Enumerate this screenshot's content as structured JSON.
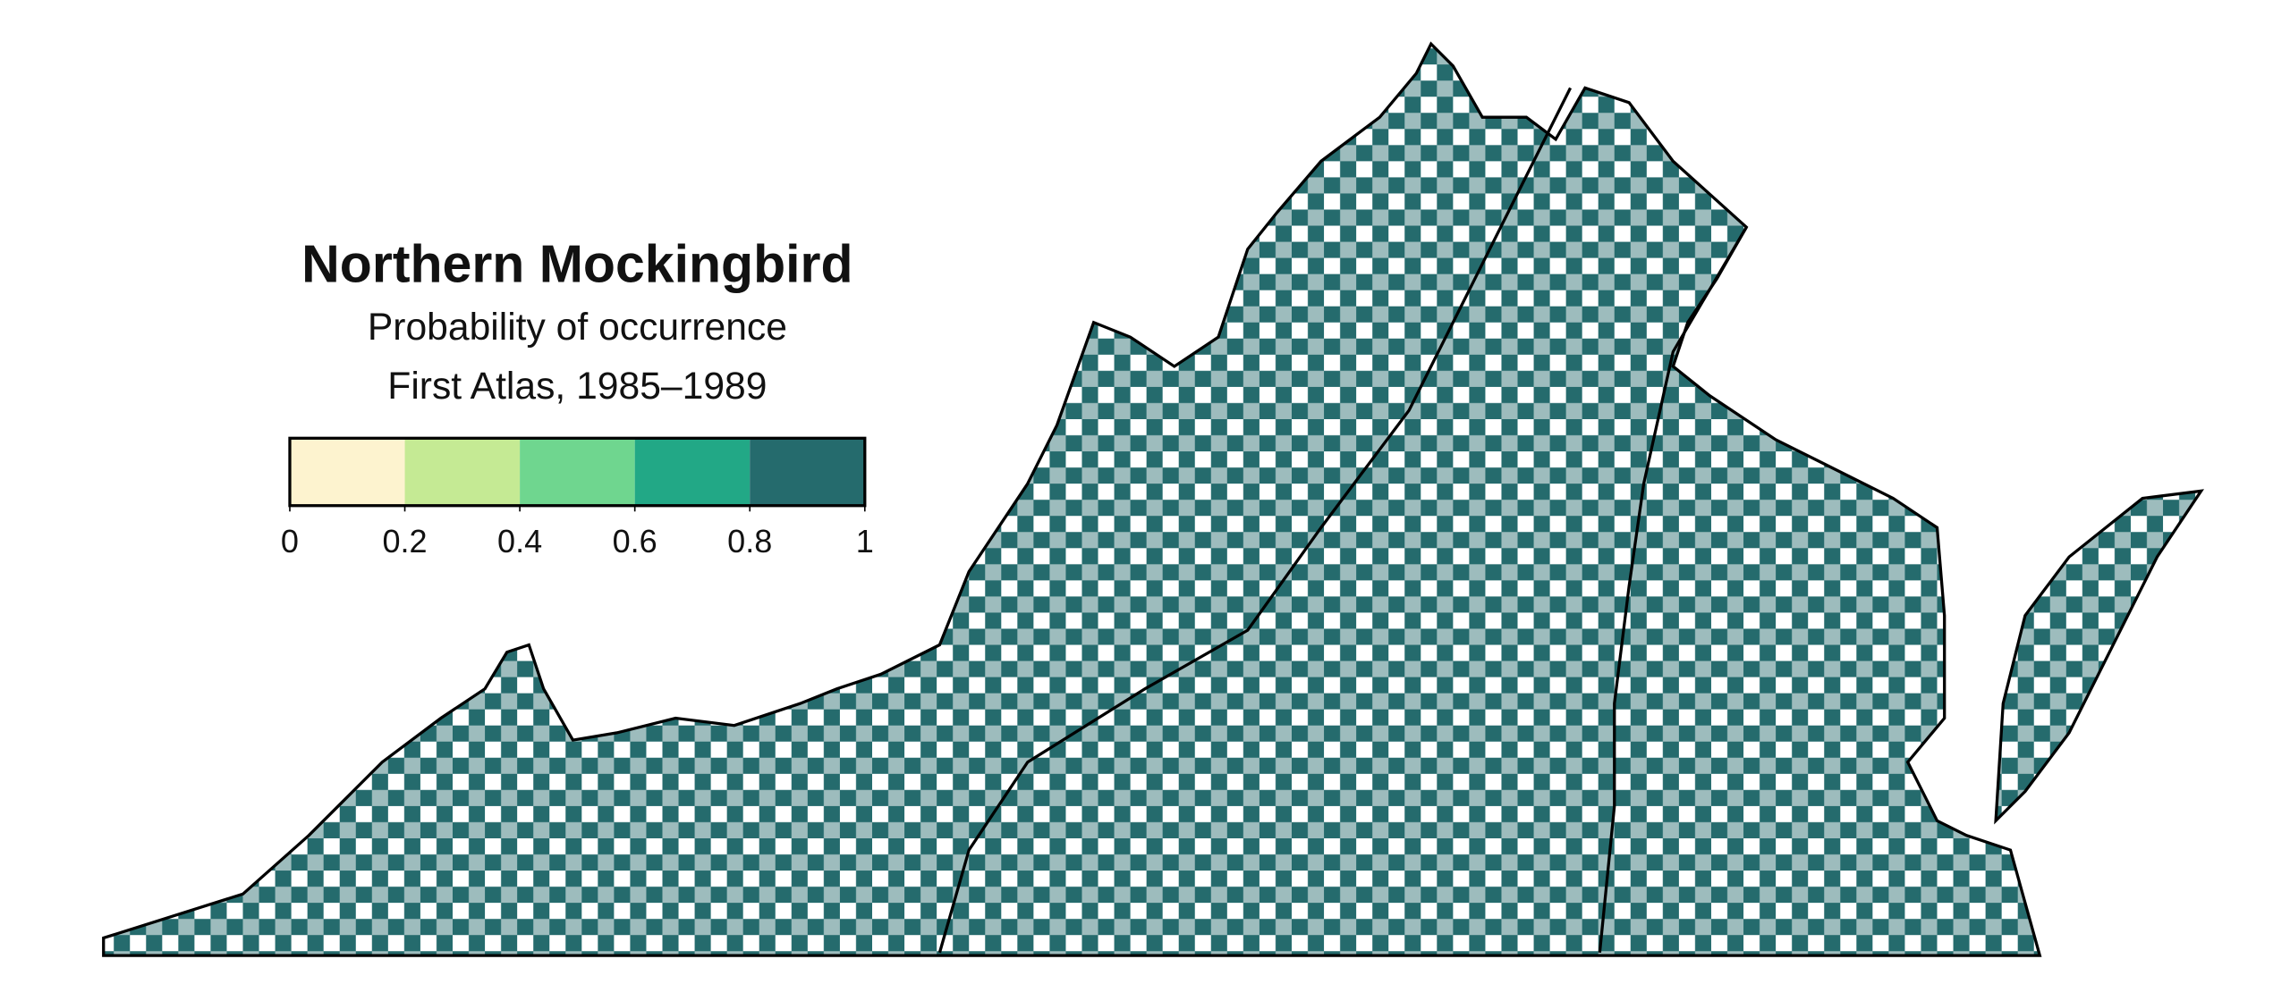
{
  "chart_data": {
    "type": "map",
    "title": "Northern Mockingbird",
    "subtitle": [
      "Probability of occurrence",
      "First Atlas, 1985–1989"
    ],
    "colorbar": {
      "lim": [
        0,
        1
      ],
      "ticks": [
        0,
        0.2,
        0.4,
        0.6,
        0.8,
        1
      ],
      "colors": [
        "#fdf3cf",
        "#c5ea94",
        "#6fd68f",
        "#22a886",
        "#256b6d"
      ]
    }
  }
}
